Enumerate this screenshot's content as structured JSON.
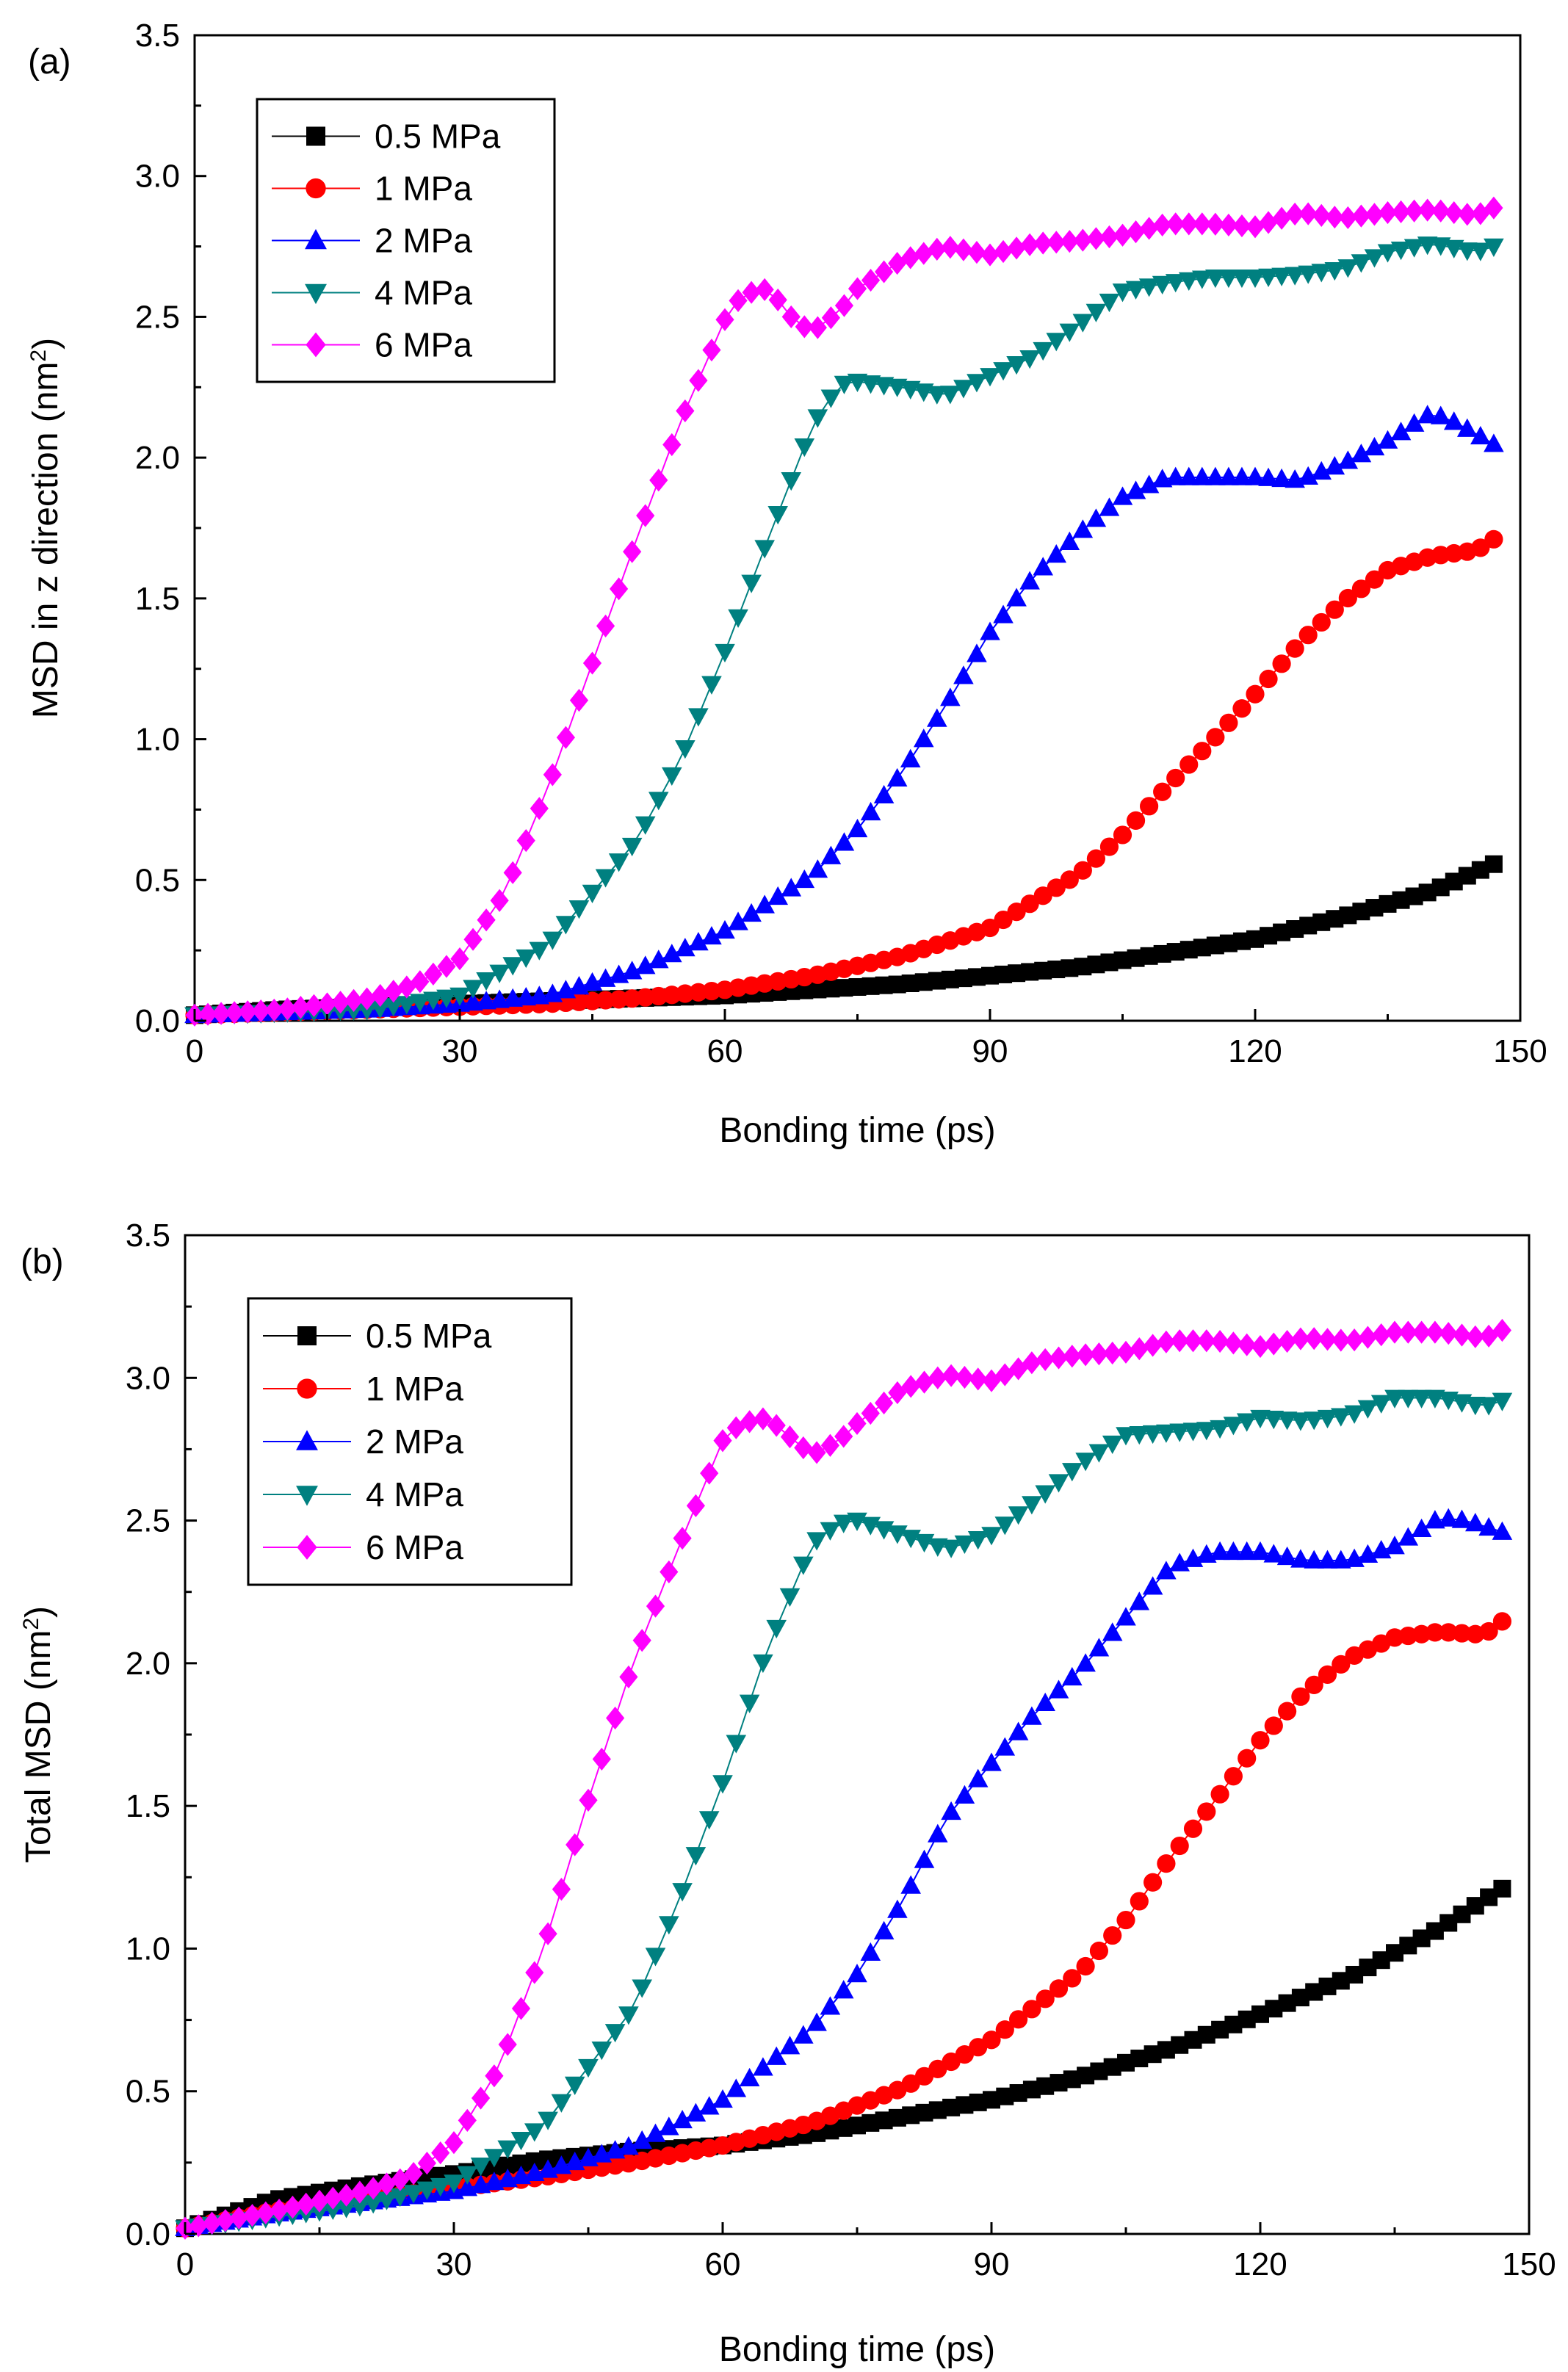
{
  "chart_data": [
    {
      "type": "scatter",
      "panel_label": "(a)",
      "title": "",
      "xlabel": "Bonding time (ps)",
      "ylabel_main": "MSD in z direction (nm",
      "ylabel_sup": "2",
      "ylabel_close": ")",
      "xlim": [
        0,
        150
      ],
      "ylim": [
        0,
        3.5
      ],
      "xticks": [
        "0",
        "30",
        "60",
        "90",
        "120",
        "150"
      ],
      "yticks": [
        "0.0",
        "0.5",
        "1.0",
        "1.5",
        "2.0",
        "2.5",
        "3.0",
        "3.5"
      ],
      "legend_position": "top-left",
      "grid": false,
      "sample_step": 1.5,
      "series": [
        {
          "name": "0.5 MPa",
          "color": "#000000",
          "marker": "square",
          "x": [
            0,
            10,
            20,
            30,
            40,
            50,
            60,
            70,
            80,
            90,
            100,
            110,
            120,
            130,
            140,
            148
          ],
          "y": [
            0.02,
            0.04,
            0.05,
            0.06,
            0.07,
            0.08,
            0.09,
            0.11,
            0.13,
            0.16,
            0.19,
            0.24,
            0.29,
            0.37,
            0.46,
            0.57
          ]
        },
        {
          "name": "1 MPa",
          "color": "#ff0000",
          "marker": "circle",
          "x": [
            0,
            10,
            20,
            30,
            40,
            50,
            60,
            70,
            80,
            90,
            100,
            105,
            110,
            115,
            120,
            125,
            130,
            135,
            140,
            145,
            148
          ],
          "y": [
            0.02,
            0.03,
            0.04,
            0.05,
            0.06,
            0.08,
            0.11,
            0.16,
            0.23,
            0.33,
            0.52,
            0.66,
            0.83,
            0.99,
            1.16,
            1.34,
            1.49,
            1.6,
            1.65,
            1.67,
            1.73
          ]
        },
        {
          "name": "2 MPa",
          "color": "#0000ff",
          "marker": "triangle-up",
          "x": [
            0,
            10,
            20,
            30,
            40,
            50,
            60,
            70,
            75,
            80,
            85,
            90,
            95,
            100,
            105,
            110,
            115,
            120,
            125,
            130,
            135,
            140,
            143,
            148
          ],
          "y": [
            0.02,
            0.03,
            0.04,
            0.06,
            0.09,
            0.18,
            0.32,
            0.52,
            0.68,
            0.88,
            1.12,
            1.38,
            1.58,
            1.73,
            1.86,
            1.93,
            1.93,
            1.93,
            1.92,
            1.98,
            2.06,
            2.16,
            2.12,
            2.03
          ]
        },
        {
          "name": "4 MPa",
          "color": "#008080",
          "marker": "triangle-down",
          "x": [
            0,
            10,
            20,
            30,
            40,
            50,
            55,
            60,
            65,
            70,
            73,
            75,
            80,
            85,
            90,
            95,
            100,
            105,
            110,
            115,
            120,
            125,
            130,
            135,
            140,
            145,
            148
          ],
          "y": [
            0.02,
            0.03,
            0.04,
            0.09,
            0.27,
            0.64,
            0.93,
            1.31,
            1.72,
            2.12,
            2.26,
            2.27,
            2.25,
            2.22,
            2.29,
            2.36,
            2.47,
            2.59,
            2.62,
            2.64,
            2.64,
            2.65,
            2.67,
            2.73,
            2.76,
            2.73,
            2.76
          ]
        },
        {
          "name": "6 MPa",
          "color": "#ff00ff",
          "marker": "diamond",
          "x": [
            0,
            10,
            20,
            25,
            30,
            35,
            40,
            45,
            50,
            55,
            60,
            62,
            65,
            68,
            70,
            73,
            75,
            80,
            85,
            90,
            95,
            100,
            105,
            110,
            115,
            120,
            125,
            130,
            135,
            140,
            145,
            148
          ],
          "y": [
            0.02,
            0.04,
            0.08,
            0.13,
            0.22,
            0.45,
            0.83,
            1.27,
            1.71,
            2.13,
            2.49,
            2.58,
            2.6,
            2.48,
            2.45,
            2.52,
            2.6,
            2.7,
            2.75,
            2.72,
            2.76,
            2.77,
            2.79,
            2.83,
            2.83,
            2.82,
            2.87,
            2.85,
            2.87,
            2.88,
            2.86,
            2.9
          ]
        }
      ]
    },
    {
      "type": "scatter",
      "panel_label": "(b)",
      "title": "",
      "xlabel": "Bonding time (ps)",
      "ylabel_main": "Total MSD (nm",
      "ylabel_sup": "2",
      "ylabel_close": ")",
      "xlim": [
        0,
        150
      ],
      "ylim": [
        0,
        3.5
      ],
      "xticks": [
        "0",
        "30",
        "60",
        "90",
        "120",
        "150"
      ],
      "yticks": [
        "0.0",
        "0.5",
        "1.0",
        "1.5",
        "2.0",
        "2.5",
        "3.0",
        "3.5"
      ],
      "legend_position": "top-left",
      "grid": false,
      "sample_step": 1.5,
      "series": [
        {
          "name": "0.5 MPa",
          "color": "#000000",
          "marker": "square",
          "x": [
            0,
            10,
            20,
            30,
            40,
            50,
            60,
            70,
            80,
            90,
            100,
            110,
            120,
            130,
            140,
            148
          ],
          "y": [
            0.02,
            0.12,
            0.17,
            0.21,
            0.26,
            0.29,
            0.31,
            0.35,
            0.41,
            0.47,
            0.55,
            0.65,
            0.77,
            0.9,
            1.07,
            1.23
          ]
        },
        {
          "name": "1 MPa",
          "color": "#ff0000",
          "marker": "circle",
          "x": [
            0,
            10,
            20,
            30,
            40,
            50,
            60,
            70,
            80,
            90,
            100,
            105,
            110,
            115,
            120,
            125,
            130,
            135,
            140,
            145,
            148
          ],
          "y": [
            0.02,
            0.08,
            0.12,
            0.16,
            0.2,
            0.25,
            0.31,
            0.39,
            0.51,
            0.68,
            0.92,
            1.1,
            1.32,
            1.52,
            1.73,
            1.9,
            2.02,
            2.09,
            2.11,
            2.1,
            2.17
          ]
        },
        {
          "name": "2 MPa",
          "color": "#0000ff",
          "marker": "triangle-up",
          "x": [
            0,
            10,
            20,
            30,
            40,
            50,
            60,
            70,
            75,
            80,
            85,
            90,
            95,
            100,
            105,
            110,
            115,
            120,
            125,
            130,
            135,
            140,
            143,
            148
          ],
          "y": [
            0.02,
            0.07,
            0.11,
            0.15,
            0.22,
            0.31,
            0.47,
            0.72,
            0.91,
            1.16,
            1.46,
            1.65,
            1.83,
            1.98,
            2.16,
            2.34,
            2.39,
            2.39,
            2.36,
            2.36,
            2.41,
            2.51,
            2.5,
            2.45
          ]
        },
        {
          "name": "4 MPa",
          "color": "#008080",
          "marker": "triangle-down",
          "x": [
            0,
            10,
            20,
            30,
            40,
            50,
            55,
            60,
            65,
            70,
            73,
            75,
            80,
            85,
            90,
            95,
            100,
            105,
            110,
            115,
            120,
            125,
            130,
            135,
            140,
            145,
            148
          ],
          "y": [
            0.02,
            0.06,
            0.1,
            0.18,
            0.38,
            0.79,
            1.16,
            1.58,
            2.05,
            2.42,
            2.49,
            2.5,
            2.45,
            2.4,
            2.45,
            2.57,
            2.7,
            2.8,
            2.81,
            2.82,
            2.86,
            2.85,
            2.87,
            2.93,
            2.93,
            2.9,
            2.93
          ]
        },
        {
          "name": "6 MPa",
          "color": "#ff00ff",
          "marker": "diamond",
          "x": [
            0,
            10,
            20,
            25,
            30,
            35,
            40,
            45,
            50,
            55,
            60,
            62,
            65,
            68,
            70,
            73,
            75,
            80,
            85,
            90,
            95,
            100,
            105,
            110,
            115,
            120,
            125,
            130,
            135,
            140,
            145,
            148
          ],
          "y": [
            0.02,
            0.08,
            0.15,
            0.2,
            0.32,
            0.58,
            1.0,
            1.52,
            2.0,
            2.4,
            2.78,
            2.84,
            2.86,
            2.78,
            2.73,
            2.78,
            2.84,
            2.96,
            3.01,
            2.99,
            3.06,
            3.08,
            3.09,
            3.13,
            3.13,
            3.11,
            3.14,
            3.13,
            3.16,
            3.16,
            3.14,
            3.18
          ]
        }
      ]
    }
  ]
}
